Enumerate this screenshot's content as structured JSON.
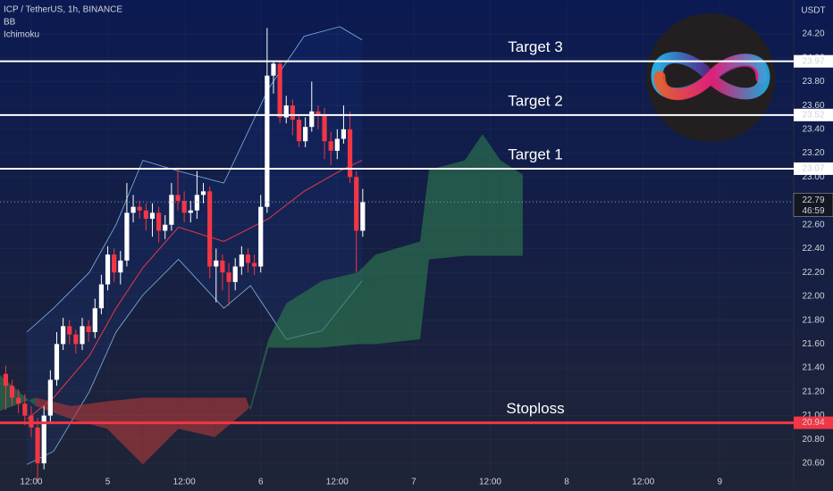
{
  "chart_data": {
    "type": "candlestick",
    "title": "ICP / TetherUS, 1h, BINANCE",
    "indicators": [
      "BB",
      "Ichimoku"
    ],
    "y_axis_unit": "USDT",
    "x": [
      8,
      9,
      10,
      11,
      12,
      13,
      14,
      15,
      16,
      17,
      18,
      19,
      20,
      21,
      22,
      23,
      24,
      25,
      26,
      27,
      28,
      29,
      30,
      31,
      32,
      33,
      34,
      35,
      36,
      37,
      38,
      39,
      40,
      41,
      42,
      43,
      44,
      45,
      46,
      47,
      48,
      49,
      50,
      51,
      52,
      53,
      54,
      55,
      56,
      57,
      58,
      59,
      60,
      61,
      62,
      63,
      64
    ],
    "open": [
      21.35,
      21.25,
      21.15,
      21.1,
      21.0,
      20.9,
      20.6,
      21.0,
      21.3,
      21.6,
      21.75,
      21.68,
      21.6,
      21.75,
      21.7,
      21.9,
      22.1,
      22.35,
      22.2,
      22.3,
      22.7,
      22.75,
      22.72,
      22.65,
      22.7,
      22.55,
      22.6,
      22.85,
      22.8,
      22.7,
      22.72,
      22.85,
      22.88,
      22.25,
      22.3,
      22.2,
      22.12,
      22.25,
      22.35,
      22.28,
      22.25,
      22.75,
      23.85,
      23.95,
      23.5,
      23.6,
      23.48,
      23.3,
      23.42,
      23.55,
      23.52,
      23.3,
      23.22,
      23.32,
      23.4,
      23.0,
      22.55
    ],
    "high": [
      21.42,
      21.3,
      21.22,
      21.18,
      21.08,
      20.98,
      21.08,
      21.38,
      21.7,
      21.82,
      21.8,
      21.72,
      21.82,
      21.8,
      21.98,
      22.18,
      22.42,
      22.4,
      22.38,
      22.95,
      22.85,
      22.8,
      22.78,
      22.78,
      22.75,
      22.68,
      22.95,
      23.08,
      22.88,
      22.8,
      23.05,
      22.95,
      22.92,
      22.4,
      22.35,
      22.28,
      22.32,
      22.42,
      22.4,
      22.35,
      22.85,
      24.25,
      23.97,
      23.98,
      23.68,
      23.65,
      23.52,
      23.5,
      23.8,
      23.6,
      23.58,
      23.38,
      23.4,
      23.6,
      23.55,
      23.05,
      22.9
    ],
    "low": [
      21.05,
      21.08,
      21.02,
      20.92,
      20.82,
      20.45,
      20.55,
      20.95,
      21.25,
      21.55,
      21.6,
      21.52,
      21.55,
      21.62,
      21.65,
      21.85,
      22.05,
      22.12,
      22.1,
      22.25,
      22.62,
      22.65,
      22.55,
      22.5,
      22.45,
      22.48,
      22.55,
      22.72,
      22.62,
      22.62,
      22.65,
      22.78,
      22.15,
      21.95,
      22.05,
      21.92,
      22.05,
      22.18,
      22.2,
      22.18,
      22.2,
      22.7,
      23.7,
      23.45,
      23.45,
      23.35,
      23.25,
      23.25,
      23.38,
      23.4,
      23.15,
      23.1,
      23.15,
      23.28,
      22.95,
      22.2,
      22.5
    ],
    "close": [
      21.25,
      21.15,
      21.1,
      21.0,
      20.9,
      20.6,
      21.0,
      21.3,
      21.6,
      21.75,
      21.68,
      21.6,
      21.75,
      21.7,
      21.9,
      22.1,
      22.35,
      22.2,
      22.3,
      22.7,
      22.75,
      22.72,
      22.65,
      22.7,
      22.55,
      22.6,
      22.85,
      22.8,
      22.7,
      22.72,
      22.85,
      22.88,
      22.25,
      22.3,
      22.2,
      22.12,
      22.25,
      22.35,
      22.28,
      22.25,
      22.75,
      23.85,
      23.95,
      23.5,
      23.6,
      23.48,
      23.3,
      23.42,
      23.55,
      23.52,
      23.3,
      23.22,
      23.32,
      23.4,
      23.0,
      22.55,
      22.79
    ],
    "up_color": "#ffffff",
    "down_color": "#f23645",
    "bollinger": [
      {
        "color": "#7fb3e0",
        "x": [
          11.3,
          15.5,
          21.1,
          25.3,
          29.5,
          35.1,
          42.2,
          49.2,
          54.8,
          60.4,
          63.9
        ],
        "values": [
          21.7,
          21.9,
          22.2,
          22.6,
          23.14,
          23.05,
          22.95,
          23.74,
          24.18,
          24.26,
          24.15
        ]
      },
      {
        "color": "#e53948",
        "x": [
          11.3,
          15.5,
          21.1,
          25.3,
          29.5,
          35.1,
          42.2,
          49.2,
          54.8,
          60.4,
          63.9
        ],
        "values": [
          20.97,
          21.15,
          21.5,
          21.9,
          22.24,
          22.58,
          22.46,
          22.65,
          22.88,
          23.05,
          23.14
        ]
      },
      {
        "color": "#7fb3e0",
        "x": [
          11.3,
          15.5,
          21.1,
          25.3,
          29.5,
          35.1,
          42.2,
          46.4,
          52.0,
          57.6,
          63.9
        ],
        "values": [
          20.59,
          20.7,
          21.2,
          21.7,
          22.01,
          22.31,
          21.9,
          22.09,
          21.64,
          21.71,
          22.13
        ]
      }
    ],
    "ichimoku": {
      "x": [
        7.1,
        12.7,
        18.3,
        23.9,
        29.5,
        35.1,
        40.8,
        45.7,
        46.4,
        49.2,
        52.0,
        57.6,
        63.2,
        66.0,
        73.0,
        74.4,
        80.0,
        82.8,
        85.6,
        89.1
      ],
      "span_a": [
        21.34,
        21.08,
        20.97,
        20.89,
        20.59,
        20.89,
        20.82,
        21.04,
        21.08,
        21.64,
        21.94,
        22.13,
        22.2,
        22.35,
        22.46,
        23.06,
        23.14,
        23.36,
        23.14,
        23.02
      ],
      "span_b": [
        21.04,
        21.15,
        21.08,
        21.12,
        21.15,
        21.15,
        21.15,
        21.15,
        21.04,
        21.57,
        21.57,
        21.57,
        21.6,
        21.6,
        21.64,
        22.31,
        22.34,
        22.34,
        22.34,
        22.34
      ],
      "bull_color": "#2e7d4f",
      "bear_color": "#b23a3a"
    },
    "levels": [
      {
        "label": "Target 3",
        "value": 23.97,
        "color": "#ffffff"
      },
      {
        "label": "Target 2",
        "value": 23.52,
        "color": "#ffffff"
      },
      {
        "label": "Target 1",
        "value": 23.07,
        "color": "#ffffff"
      },
      {
        "label": "Stoploss",
        "value": 20.94,
        "color": "#f23645"
      }
    ],
    "last_price": 22.79,
    "countdown": "46:59",
    "xlim": [
      7.1,
      131.6
    ],
    "ylim": [
      20.368,
      24.484
    ],
    "xticks": [
      {
        "value": 12,
        "label": "12:00"
      },
      {
        "value": 24,
        "label": "5"
      },
      {
        "value": 36,
        "label": "12:00"
      },
      {
        "value": 48,
        "label": "6"
      },
      {
        "value": 60,
        "label": "12:00"
      },
      {
        "value": 72,
        "label": "7"
      },
      {
        "value": 84,
        "label": "12:00"
      },
      {
        "value": 96,
        "label": "8"
      },
      {
        "value": 108,
        "label": "12:00"
      },
      {
        "value": 120,
        "label": "9"
      }
    ],
    "yticks": [
      {
        "value": 20.6,
        "label": "20.60"
      },
      {
        "value": 20.8,
        "label": "20.80"
      },
      {
        "value": 21.0,
        "label": "21.00"
      },
      {
        "value": 21.2,
        "label": "21.20"
      },
      {
        "value": 21.4,
        "label": "21.40"
      },
      {
        "value": 21.6,
        "label": "21.60"
      },
      {
        "value": 21.8,
        "label": "21.80"
      },
      {
        "value": 22.0,
        "label": "22.00"
      },
      {
        "value": 22.2,
        "label": "22.20"
      },
      {
        "value": 22.4,
        "label": "22.40"
      },
      {
        "value": 22.6,
        "label": "22.60"
      },
      {
        "value": 22.8,
        "label": "22.80"
      },
      {
        "value": 23.0,
        "label": "23.00"
      },
      {
        "value": 23.2,
        "label": "23.20"
      },
      {
        "value": 23.4,
        "label": "23.40"
      },
      {
        "value": 23.6,
        "label": "23.60"
      },
      {
        "value": 23.8,
        "label": "23.80"
      },
      {
        "value": 24.0,
        "label": "24.00"
      },
      {
        "value": 24.2,
        "label": "24.20"
      }
    ],
    "grid": true
  }
}
